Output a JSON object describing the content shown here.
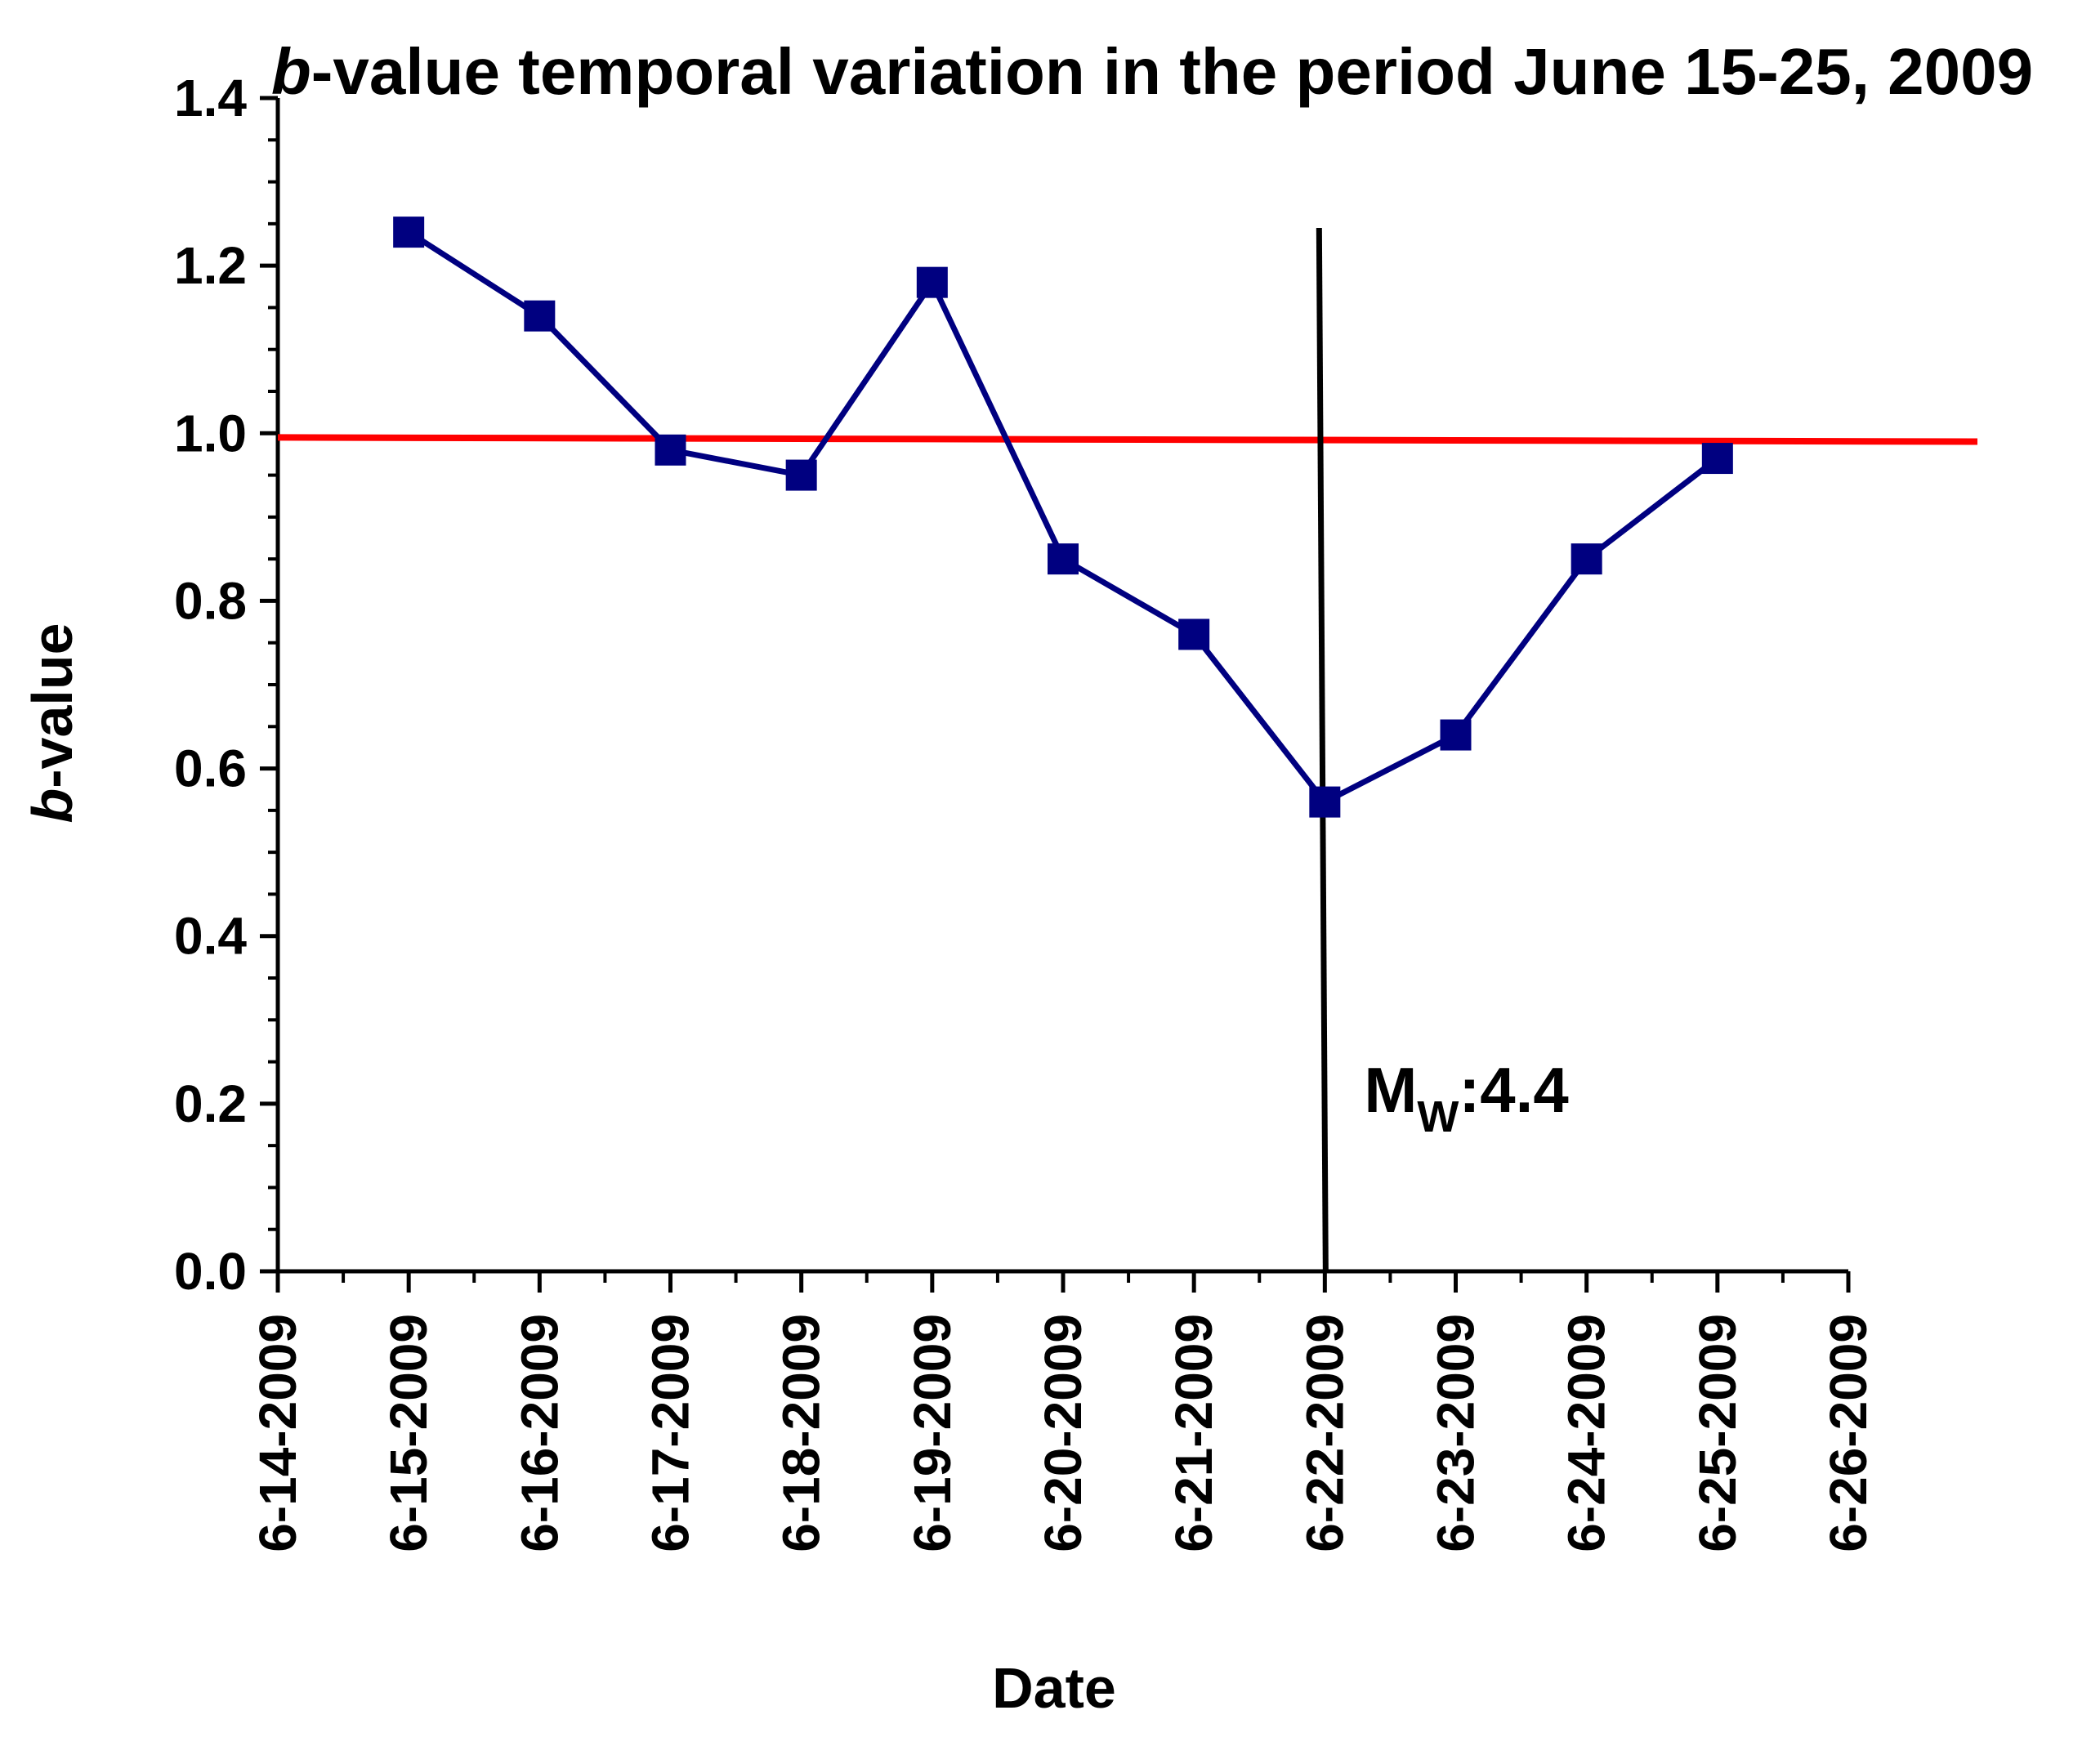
{
  "chart_data": {
    "type": "line",
    "title_prefix": "b",
    "title_rest": "-value temporal variation in the period June 15-25, 2009",
    "xlabel": "Date",
    "ylabel_prefix": "b",
    "ylabel_rest": "-value",
    "x_ticks": [
      "6-14-2009",
      "6-15-2009",
      "6-16-2009",
      "6-17-2009",
      "6-18-2009",
      "6-19-2009",
      "6-20-2009",
      "6-21-2009",
      "6-22-2009",
      "6-23-2009",
      "6-24-2009",
      "6-25-2009",
      "6-26-2009"
    ],
    "y_ticks": [
      "0.0",
      "0.2",
      "0.4",
      "0.6",
      "0.8",
      "1.0",
      "1.2",
      "1.4"
    ],
    "ylim": [
      0,
      1.4
    ],
    "xlim_days": [
      0,
      12
    ],
    "series": [
      {
        "name": "b-value",
        "color": "#000080",
        "marker": "square",
        "x_days": [
          1,
          2,
          3,
          4,
          5,
          6,
          7,
          8,
          9,
          10,
          11
        ],
        "values": [
          1.24,
          1.14,
          0.98,
          0.95,
          1.18,
          0.85,
          0.76,
          0.56,
          0.64,
          0.85,
          0.97
        ]
      }
    ],
    "reference_line": {
      "color": "#ff0000",
      "y_start": 0.995,
      "y_end": 0.99
    },
    "event_line": {
      "color": "#000000",
      "x_day": 8,
      "y_top": 1.245
    },
    "annotation": {
      "main": "M",
      "sub": "W",
      "rest": ":4.4",
      "x_day": 8.3,
      "y_value": 0.19
    }
  }
}
